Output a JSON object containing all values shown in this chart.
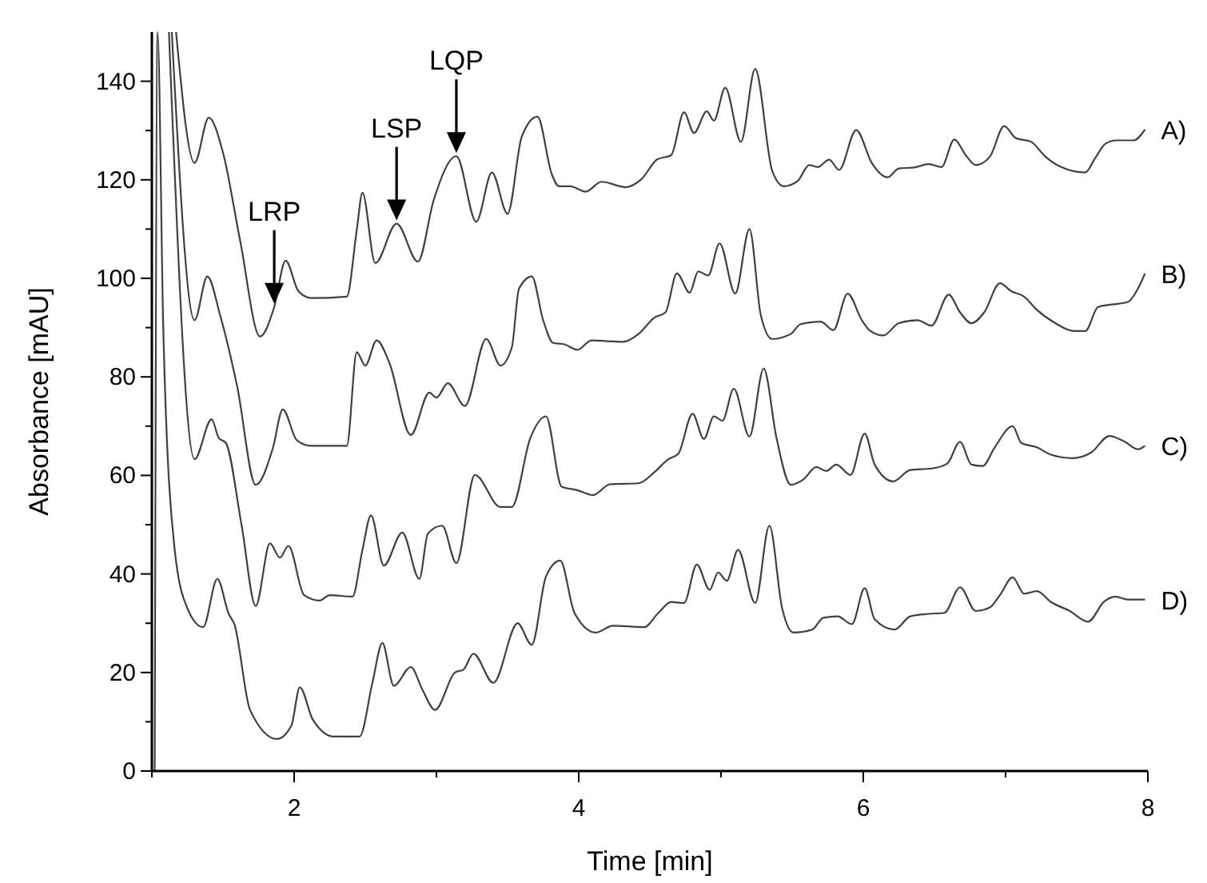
{
  "chart_data": {
    "type": "line",
    "xlabel": "Time [min]",
    "ylabel": "Absorbance [mAU]",
    "xlim": [
      1,
      8
    ],
    "xticks": [
      {
        "value": 1,
        "label": null
      },
      2,
      {
        "value": 3,
        "label": null
      },
      4,
      {
        "value": 5,
        "label": null
      },
      6,
      {
        "value": 7,
        "label": null
      },
      8
    ],
    "ylim": [
      0,
      150
    ],
    "yticks": [
      0,
      {
        "value": 10,
        "label": null
      },
      20,
      {
        "value": 30,
        "label": null
      },
      40,
      {
        "value": 50,
        "label": null
      },
      60,
      {
        "value": 70,
        "label": null
      },
      80,
      {
        "value": 90,
        "label": null
      },
      100,
      {
        "value": 110,
        "label": null
      },
      120,
      {
        "value": 130,
        "label": null
      },
      140
    ],
    "grid": false,
    "marker": "none",
    "line_style": "solid",
    "annotations": [
      {
        "text": "LRP",
        "x": 1.86,
        "y": 94.2
      },
      {
        "text": "LSP",
        "x": 2.72,
        "y": 111.1
      },
      {
        "text": "LQP",
        "x": 3.14,
        "y": 124.8
      }
    ],
    "series": [
      {
        "name": "A)",
        "color": "#404040",
        "x": [
          1.17,
          1.3,
          1.4,
          1.5,
          1.62,
          1.76,
          1.86,
          1.94,
          2.03,
          2.12,
          2.37,
          2.44,
          2.48,
          2.57,
          2.72,
          2.87,
          2.98,
          3.14,
          3.28,
          3.39,
          3.5,
          3.6,
          3.71,
          3.81,
          3.86,
          3.94,
          4.05,
          4.16,
          4.33,
          4.44,
          4.55,
          4.65,
          4.74,
          4.81,
          4.9,
          4.95,
          5.03,
          5.14,
          5.24,
          5.36,
          5.44,
          5.54,
          5.62,
          5.68,
          5.76,
          5.83,
          5.95,
          6.06,
          6.17,
          6.25,
          6.36,
          6.46,
          6.55,
          6.64,
          6.72,
          6.79,
          6.89,
          6.99,
          7.07,
          7.18,
          7.28,
          7.39,
          7.56,
          7.63,
          7.7,
          7.78,
          7.9,
          7.98
        ],
        "values": [
          150,
          123.4,
          132.6,
          125.5,
          107.7,
          88.2,
          94.2,
          103.6,
          97.4,
          96,
          96.3,
          109.8,
          117.4,
          103.1,
          111.1,
          103.4,
          115.8,
          124.8,
          111.5,
          121.5,
          113.1,
          128.8,
          132.8,
          121.2,
          118.7,
          118.7,
          117.6,
          119.6,
          118.5,
          120.1,
          124.1,
          125,
          133.7,
          129.5,
          133.9,
          132,
          138.7,
          127.7,
          142.5,
          121.8,
          118.7,
          119.8,
          123,
          122.6,
          124.1,
          122,
          130.1,
          123.4,
          120.5,
          122.3,
          122.5,
          123.2,
          122.6,
          128.2,
          125,
          123,
          124.7,
          130.9,
          128.5,
          127.7,
          124.7,
          122.6,
          121.5,
          124.4,
          127.3,
          128,
          128,
          130.2
        ]
      },
      {
        "name": "B)",
        "color": "#404040",
        "x": [
          1.14,
          1.3,
          1.39,
          1.48,
          1.6,
          1.73,
          1.85,
          1.92,
          2.02,
          2.12,
          2.37,
          2.44,
          2.5,
          2.58,
          2.67,
          2.82,
          2.95,
          3.0,
          3.08,
          3.2,
          3.35,
          3.45,
          3.53,
          3.58,
          3.67,
          3.75,
          3.82,
          3.9,
          3.99,
          4.09,
          4.31,
          4.42,
          4.53,
          4.61,
          4.69,
          4.78,
          4.84,
          4.91,
          4.99,
          5.1,
          5.2,
          5.28,
          5.36,
          5.49,
          5.56,
          5.7,
          5.79,
          5.89,
          5.99,
          6.05,
          6.14,
          6.25,
          6.38,
          6.48,
          6.6,
          6.68,
          6.76,
          6.85,
          6.96,
          7.04,
          7.13,
          7.22,
          7.35,
          7.48,
          7.56,
          7.65,
          7.75,
          7.86,
          7.93,
          7.98
        ],
        "values": [
          150,
          91.5,
          100.4,
          92.5,
          78,
          58.1,
          65.5,
          73.4,
          67.1,
          66,
          66,
          85,
          82.3,
          87.4,
          82.8,
          68.2,
          76.8,
          75.8,
          78.7,
          74.1,
          87.7,
          82.3,
          86,
          97.9,
          100.4,
          91.5,
          86.9,
          86.6,
          85.5,
          87.4,
          87.1,
          88.7,
          92,
          93.1,
          101,
          97.1,
          101.4,
          100.6,
          107.1,
          96.9,
          110,
          92.5,
          87.7,
          88.7,
          90.7,
          91.2,
          89.5,
          96.9,
          91.5,
          89.3,
          88.4,
          90.9,
          91.5,
          90.4,
          96.7,
          93.1,
          90.9,
          93.1,
          99,
          97.4,
          96.3,
          93.6,
          90.9,
          89.3,
          89.3,
          94.2,
          94.7,
          95.2,
          97.9,
          101
        ]
      },
      {
        "name": "C)",
        "color": "#404040",
        "x": [
          1.12,
          1.3,
          1.42,
          1.47,
          1.52,
          1.63,
          1.73,
          1.83,
          1.9,
          1.96,
          2.07,
          2.18,
          2.25,
          2.41,
          2.48,
          2.54,
          2.63,
          2.76,
          2.88,
          2.94,
          3.04,
          3.14,
          3.27,
          3.45,
          3.53,
          3.66,
          3.77,
          3.88,
          3.99,
          4.1,
          4.22,
          4.42,
          4.53,
          4.63,
          4.7,
          4.8,
          4.88,
          4.95,
          5.01,
          5.09,
          5.2,
          5.3,
          5.39,
          5.49,
          5.58,
          5.67,
          5.74,
          5.81,
          5.91,
          6.01,
          6.08,
          6.21,
          6.33,
          6.48,
          6.59,
          6.68,
          6.76,
          6.84,
          6.92,
          7.05,
          7.11,
          7.22,
          7.32,
          7.47,
          7.6,
          7.73,
          7.84,
          7.93,
          7.98
        ],
        "values": [
          150,
          63.3,
          71.4,
          67.6,
          66.6,
          50,
          33.5,
          46.2,
          43.3,
          45.7,
          35.7,
          34.6,
          35.7,
          35.4,
          44.9,
          51.9,
          41.7,
          48.4,
          39,
          48.2,
          49.8,
          42.2,
          60.1,
          53.6,
          53.6,
          67.6,
          72,
          57.7,
          57,
          56,
          58.2,
          58.4,
          60.6,
          63.3,
          64.4,
          72.5,
          67.4,
          72,
          71.1,
          77.6,
          67.9,
          81.7,
          67.6,
          58.1,
          59.2,
          61.7,
          60.9,
          62.2,
          60.1,
          68.5,
          62.2,
          58.8,
          61.1,
          61.4,
          62.4,
          66.8,
          62.2,
          61.9,
          65.5,
          70,
          66.6,
          65.7,
          64.2,
          63.5,
          64.6,
          68,
          66.8,
          65.3,
          66
        ]
      },
      {
        "name": "D)",
        "color": "#404040",
        "x": [
          1.02,
          1.04,
          1.08,
          1.16,
          1.25,
          1.36,
          1.46,
          1.54,
          1.58,
          1.69,
          1.88,
          1.98,
          2.04,
          2.13,
          2.28,
          2.46,
          2.55,
          2.62,
          2.7,
          2.82,
          2.9,
          2.99,
          3.13,
          3.19,
          3.26,
          3.4,
          3.56,
          3.57,
          3.67,
          3.77,
          3.87,
          3.97,
          4.12,
          4.24,
          4.46,
          4.56,
          4.65,
          4.74,
          4.83,
          4.92,
          4.98,
          5.04,
          5.12,
          5.24,
          5.34,
          5.43,
          5.51,
          5.64,
          5.72,
          5.82,
          5.92,
          6.01,
          6.08,
          6.22,
          6.33,
          6.46,
          6.57,
          6.68,
          6.79,
          6.89,
          6.96,
          7.05,
          7.13,
          7.22,
          7.32,
          7.45,
          7.58,
          7.69,
          7.77,
          7.86,
          7.98
        ],
        "values": [
          0,
          150,
          90,
          45,
          33,
          29.2,
          39,
          31.9,
          29.8,
          12.4,
          6.5,
          9.2,
          17,
          10.5,
          7,
          7,
          17.9,
          26,
          17.3,
          21.1,
          16.6,
          12.4,
          20,
          20.6,
          23.8,
          17.9,
          29.8,
          30,
          25.6,
          39.5,
          42.7,
          32.1,
          28.1,
          29.5,
          29.2,
          32.1,
          34.3,
          34.1,
          41.9,
          36.8,
          40.3,
          38.6,
          44.9,
          34.1,
          49.8,
          33,
          28.1,
          28.7,
          31.1,
          31.4,
          29.8,
          37.1,
          30.8,
          28.7,
          31.4,
          31.9,
          32.1,
          37.3,
          32.5,
          33.2,
          35.7,
          39.3,
          36,
          36.5,
          34.3,
          32.5,
          30.3,
          34.3,
          35.4,
          34.8,
          34.8
        ]
      }
    ]
  }
}
